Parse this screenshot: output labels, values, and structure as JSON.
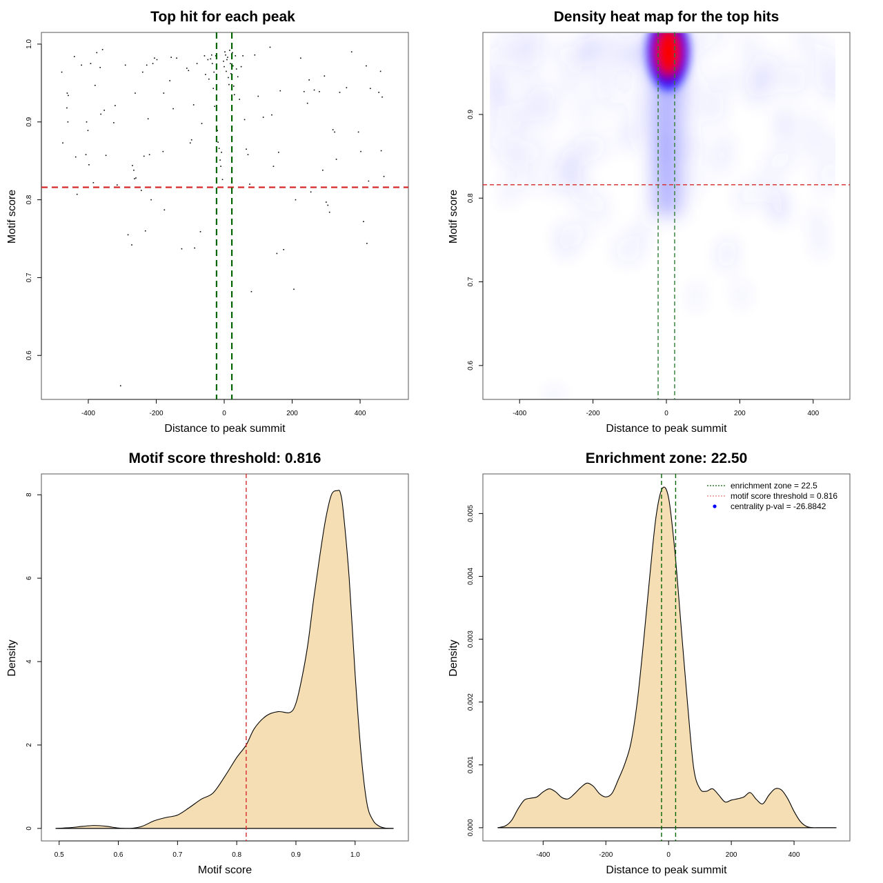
{
  "chart_data": [
    {
      "id": "scatter",
      "type": "scatter",
      "title": "Top hit for each peak",
      "xlabel": "Distance to peak summit",
      "ylabel": "Motif score",
      "xlim": [
        -538,
        542
      ],
      "ylim": [
        0.5435,
        1.015
      ],
      "xticks": [
        -400,
        -200,
        0,
        200,
        400
      ],
      "xtick_labels": [
        "-400",
        "-200",
        "0",
        "200",
        "400"
      ],
      "yticks": [
        0.6,
        0.7,
        0.8,
        0.9,
        1.0
      ],
      "ytick_labels": [
        "0.6",
        "0.7",
        "0.8",
        "0.9",
        "1.0"
      ],
      "grid": false,
      "reference_lines": [
        {
          "orientation": "horizontal",
          "value": 0.816,
          "color": "#d62728",
          "style": "dashed",
          "label": "motif score threshold"
        },
        {
          "orientation": "vertical",
          "value": -22.5,
          "color": "#006400",
          "style": "dashed",
          "label": "enrichment zone"
        },
        {
          "orientation": "vertical",
          "value": 22.5,
          "color": "#006400",
          "style": "dashed",
          "label": "enrichment zone"
        }
      ],
      "points": [
        [
          -478,
          0.964
        ],
        [
          -475,
          0.873
        ],
        [
          -462,
          0.937
        ],
        [
          -459,
          0.934
        ],
        [
          -463,
          0.918
        ],
        [
          -460,
          0.9
        ],
        [
          -441,
          0.984
        ],
        [
          -437,
          0.855
        ],
        [
          -433,
          0.807
        ],
        [
          -420,
          0.973
        ],
        [
          -405,
          0.9
        ],
        [
          -401,
          0.889
        ],
        [
          -407,
          0.858
        ],
        [
          -398,
          0.845
        ],
        [
          -393,
          0.975
        ],
        [
          -385,
          0.822
        ],
        [
          -375,
          0.989
        ],
        [
          -380,
          0.947
        ],
        [
          -365,
          0.97
        ],
        [
          -363,
          0.91
        ],
        [
          -358,
          0.993
        ],
        [
          -353,
          0.915
        ],
        [
          -348,
          0.857
        ],
        [
          -325,
          0.899
        ],
        [
          -321,
          0.921
        ],
        [
          -315,
          0.819
        ],
        [
          -305,
          0.561
        ],
        [
          -291,
          0.973
        ],
        [
          -283,
          0.755
        ],
        [
          -272,
          0.742
        ],
        [
          -270,
          0.844
        ],
        [
          -266,
          0.838
        ],
        [
          -264,
          0.827
        ],
        [
          -262,
          0.937
        ],
        [
          -260,
          0.828
        ],
        [
          -244,
          0.812
        ],
        [
          -240,
          0.964
        ],
        [
          -236,
          0.856
        ],
        [
          -232,
          0.76
        ],
        [
          -228,
          0.973
        ],
        [
          -224,
          0.904
        ],
        [
          -220,
          0.858
        ],
        [
          -215,
          0.8
        ],
        [
          -210,
          0.975
        ],
        [
          -205,
          0.982
        ],
        [
          -198,
          0.98
        ],
        [
          -180,
          0.862
        ],
        [
          -178,
          0.937
        ],
        [
          -176,
          0.787
        ],
        [
          -160,
          0.953
        ],
        [
          -156,
          0.983
        ],
        [
          -150,
          0.917
        ],
        [
          -140,
          0.982
        ],
        [
          -125,
          0.737
        ],
        [
          -110,
          0.969
        ],
        [
          -105,
          0.966
        ],
        [
          -100,
          0.873
        ],
        [
          -96,
          0.877
        ],
        [
          -90,
          0.922
        ],
        [
          -87,
          0.738
        ],
        [
          -80,
          0.975
        ],
        [
          -70,
          0.759
        ],
        [
          -66,
          0.898
        ],
        [
          -58,
          0.985
        ],
        [
          -55,
          0.961
        ],
        [
          -48,
          0.98
        ],
        [
          -45,
          0.955
        ],
        [
          -40,
          0.981
        ],
        [
          -37,
          0.986
        ],
        [
          -35,
          0.975
        ],
        [
          -32,
          0.943
        ],
        [
          -30,
          0.964
        ],
        [
          -28,
          0.92
        ],
        [
          -25,
          0.985
        ],
        [
          -22,
          0.907
        ],
        [
          -20,
          0.889
        ],
        [
          -18,
          0.874
        ],
        [
          -15,
          0.866
        ],
        [
          -12,
          0.851
        ],
        [
          -10,
          0.843
        ],
        [
          -8,
          0.861
        ],
        [
          -5,
          0.826
        ],
        [
          -2,
          0.978
        ],
        [
          0,
          0.971
        ],
        [
          2,
          0.99
        ],
        [
          4,
          0.986
        ],
        [
          6,
          0.965
        ],
        [
          8,
          0.98
        ],
        [
          10,
          0.983
        ],
        [
          12,
          0.957
        ],
        [
          14,
          0.948
        ],
        [
          16,
          0.992
        ],
        [
          18,
          0.975
        ],
        [
          20,
          0.962
        ],
        [
          22,
          0.984
        ],
        [
          24,
          0.989
        ],
        [
          26,
          0.972
        ],
        [
          28,
          0.946
        ],
        [
          30,
          0.935
        ],
        [
          33,
          0.985
        ],
        [
          36,
          0.968
        ],
        [
          40,
          0.958
        ],
        [
          45,
          0.929
        ],
        [
          50,
          0.971
        ],
        [
          55,
          0.985
        ],
        [
          60,
          0.903
        ],
        [
          65,
          0.865
        ],
        [
          70,
          0.858
        ],
        [
          75,
          0.82
        ],
        [
          80,
          0.682
        ],
        [
          90,
          0.986
        ],
        [
          100,
          0.933
        ],
        [
          115,
          0.906
        ],
        [
          135,
          0.996
        ],
        [
          140,
          0.909
        ],
        [
          145,
          0.843
        ],
        [
          155,
          0.731
        ],
        [
          160,
          0.861
        ],
        [
          165,
          0.94
        ],
        [
          175,
          0.736
        ],
        [
          205,
          0.685
        ],
        [
          210,
          0.8
        ],
        [
          225,
          0.982
        ],
        [
          235,
          0.939
        ],
        [
          245,
          0.924
        ],
        [
          250,
          0.954
        ],
        [
          255,
          0.81
        ],
        [
          265,
          0.941
        ],
        [
          280,
          0.939
        ],
        [
          290,
          0.838
        ],
        [
          295,
          0.959
        ],
        [
          300,
          0.797
        ],
        [
          305,
          0.793
        ],
        [
          310,
          0.784
        ],
        [
          320,
          0.89
        ],
        [
          325,
          0.887
        ],
        [
          330,
          0.852
        ],
        [
          340,
          0.938
        ],
        [
          360,
          0.944
        ],
        [
          375,
          0.99
        ],
        [
          395,
          0.887
        ],
        [
          402,
          0.862
        ],
        [
          410,
          0.772
        ],
        [
          418,
          0.972
        ],
        [
          420,
          0.744
        ],
        [
          425,
          0.824
        ],
        [
          430,
          0.943
        ],
        [
          455,
          0.938
        ],
        [
          460,
          0.965
        ],
        [
          462,
          0.863
        ],
        [
          465,
          0.932
        ],
        [
          470,
          0.83
        ]
      ]
    },
    {
      "id": "heatmap",
      "type": "heatmap",
      "title": "Density heat map for the top hits",
      "xlabel": "Distance to peak summit",
      "ylabel": "Motif score",
      "xlim": [
        -500,
        500
      ],
      "ylim": [
        0.5595,
        0.998
      ],
      "xticks": [
        -400,
        -200,
        0,
        200,
        400
      ],
      "xtick_labels": [
        "-400",
        "-200",
        "0",
        "200",
        "400"
      ],
      "yticks": [
        0.6,
        0.7,
        0.8,
        0.9
      ],
      "ytick_labels": [
        "0.6",
        "0.7",
        "0.8",
        "0.9"
      ],
      "data_extent_x": [
        -480,
        465
      ],
      "colormap": [
        "#ffffff",
        "#0000ff",
        "#ff0000"
      ],
      "peak_location": {
        "x": 5,
        "y": 0.975
      },
      "reference_lines": [
        {
          "orientation": "horizontal",
          "value": 0.816,
          "color": "#d62728",
          "style": "dashed"
        },
        {
          "orientation": "vertical",
          "value": -22.5,
          "color": "#2e7d32",
          "style": "dashed"
        },
        {
          "orientation": "vertical",
          "value": 22.5,
          "color": "#2e7d32",
          "style": "dashed"
        }
      ]
    },
    {
      "id": "score-density",
      "type": "area",
      "title": "Motif score threshold: 0.816",
      "xlabel": "Motif score",
      "ylabel": "Density",
      "xlim": [
        0.47,
        1.09
      ],
      "ylim": [
        -0.3,
        8.5
      ],
      "xticks": [
        0.5,
        0.6,
        0.7,
        0.8,
        0.9,
        1.0
      ],
      "xtick_labels": [
        "0.5",
        "0.6",
        "0.7",
        "0.8",
        "0.9",
        "1.0"
      ],
      "yticks": [
        0,
        2,
        4,
        6,
        8
      ],
      "ytick_labels": [
        "0",
        "2",
        "4",
        "6",
        "8"
      ],
      "fill_color": "#f5deb3",
      "x": [
        0.494,
        0.52,
        0.54,
        0.56,
        0.58,
        0.6,
        0.62,
        0.64,
        0.66,
        0.68,
        0.7,
        0.72,
        0.74,
        0.76,
        0.78,
        0.8,
        0.816,
        0.83,
        0.85,
        0.87,
        0.89,
        0.9,
        0.91,
        0.92,
        0.93,
        0.94,
        0.95,
        0.96,
        0.97,
        0.975,
        0.98,
        0.99,
        1.0,
        1.01,
        1.02,
        1.03,
        1.04,
        1.05,
        1.065
      ],
      "y": [
        0.0,
        0.02,
        0.05,
        0.07,
        0.05,
        0.01,
        0.0,
        0.05,
        0.18,
        0.26,
        0.32,
        0.5,
        0.7,
        0.85,
        1.25,
        1.7,
        2.0,
        2.4,
        2.7,
        2.8,
        2.78,
        3.0,
        3.6,
        4.4,
        5.5,
        6.5,
        7.4,
        8.0,
        8.1,
        8.05,
        7.6,
        6.0,
        3.7,
        1.8,
        0.6,
        0.2,
        0.06,
        0.01,
        0.0
      ],
      "reference_lines": [
        {
          "orientation": "vertical",
          "value": 0.816,
          "color": "#d62728",
          "style": "dashed"
        }
      ]
    },
    {
      "id": "distance-density",
      "type": "area",
      "title": "Enrichment zone: 22.50",
      "xlabel": "Distance to peak summit",
      "ylabel": "Density",
      "xlim": [
        -592,
        578
      ],
      "ylim": [
        -0.00021,
        0.00563
      ],
      "xticks": [
        -400,
        -200,
        0,
        200,
        400
      ],
      "xtick_labels": [
        "-400",
        "-200",
        "0",
        "200",
        "400"
      ],
      "yticks": [
        0,
        0.001,
        0.002,
        0.003,
        0.004,
        0.005
      ],
      "ytick_labels": [
        "0.000",
        "0.001",
        "0.002",
        "0.003",
        "0.004",
        "0.005"
      ],
      "fill_color": "#f5deb3",
      "x": [
        -545,
        -520,
        -500,
        -480,
        -460,
        -440,
        -420,
        -400,
        -380,
        -360,
        -340,
        -320,
        -300,
        -280,
        -260,
        -240,
        -220,
        -200,
        -180,
        -160,
        -140,
        -120,
        -100,
        -80,
        -60,
        -40,
        -20,
        0,
        20,
        40,
        60,
        80,
        100,
        120,
        140,
        160,
        180,
        200,
        220,
        240,
        260,
        280,
        300,
        320,
        340,
        360,
        380,
        400,
        420,
        440,
        460,
        480,
        500,
        520,
        535
      ],
      "y": [
        0.0,
        3e-05,
        0.00012,
        0.0003,
        0.00044,
        0.00047,
        0.00049,
        0.00057,
        0.00062,
        0.00057,
        0.00048,
        0.00046,
        0.00054,
        0.00064,
        0.00071,
        0.00066,
        0.00054,
        0.00049,
        0.00055,
        0.00077,
        0.00101,
        0.00135,
        0.002,
        0.00295,
        0.004,
        0.00495,
        0.0054,
        0.00525,
        0.0044,
        0.0032,
        0.002,
        0.00095,
        0.00062,
        0.00058,
        0.00062,
        0.00052,
        0.00041,
        0.00044,
        0.00046,
        0.00049,
        0.00056,
        0.00045,
        0.00038,
        0.00052,
        0.00062,
        0.0006,
        0.00046,
        0.00026,
        0.0001,
        2e-05,
        0.0,
        0.0,
        0.0,
        0.0,
        0.0
      ],
      "reference_lines": [
        {
          "orientation": "vertical",
          "value": -22.5,
          "color": "#006400",
          "style": "dashed"
        },
        {
          "orientation": "vertical",
          "value": 22.5,
          "color": "#006400",
          "style": "dashed"
        }
      ],
      "legend": {
        "placement": "top-right",
        "entries": [
          {
            "label": "enrichment zone = 22.5",
            "symbol": "dotted-line",
            "color": "#006400"
          },
          {
            "label": "motif score threshold = 0.816",
            "symbol": "dotted-line",
            "color": "#e57373"
          },
          {
            "label": "centrality p-val = -26.8842",
            "symbol": "dot",
            "color": "#0000ff"
          }
        ]
      }
    }
  ]
}
